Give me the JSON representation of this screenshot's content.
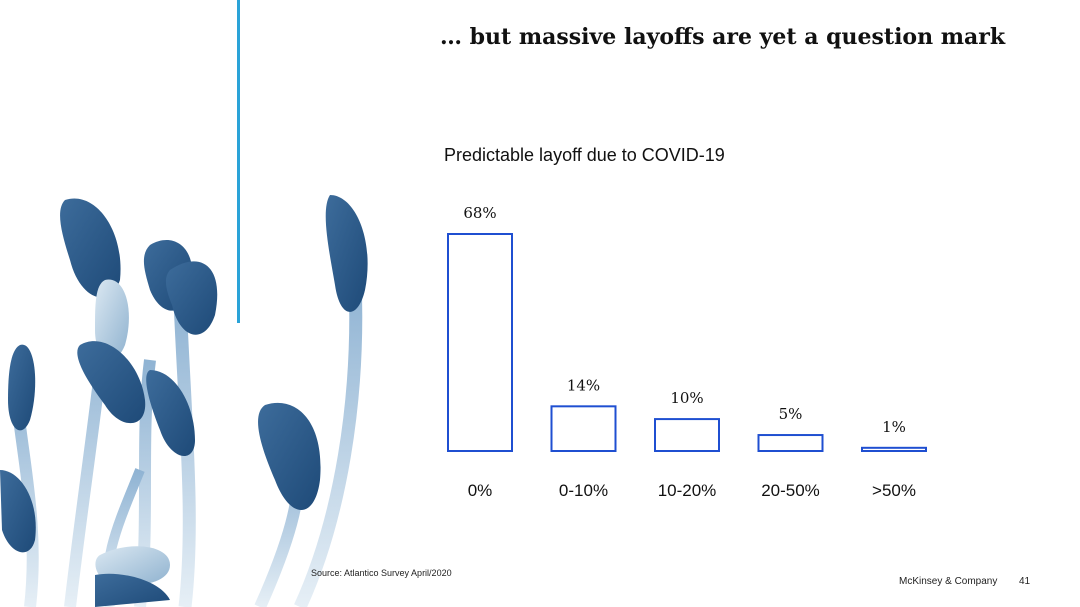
{
  "slide": {
    "title": "… but massive layoffs are yet a question mark",
    "source": "Source: Atlantico Survey April/2020",
    "footer_brand": "McKinsey & Company",
    "page_number": "41"
  },
  "colors": {
    "accent_line": "#2aa3d8",
    "bar_outline": "#1f4fd1",
    "plant_dark": "#2f5f8f",
    "plant_mid": "#5f8fb9",
    "plant_light": "#c9dcea"
  },
  "chart_data": {
    "type": "bar",
    "title": "Predictable layoff due to COVID-19",
    "categories": [
      "0%",
      "0-10%",
      "10-20%",
      "20-50%",
      ">50%"
    ],
    "values": [
      68,
      14,
      10,
      5,
      1
    ],
    "value_labels": [
      "68%",
      "14%",
      "10%",
      "5%",
      "1%"
    ],
    "ylim": [
      0,
      68
    ],
    "grid": false,
    "legend": "none",
    "bar_style": "outlined"
  }
}
